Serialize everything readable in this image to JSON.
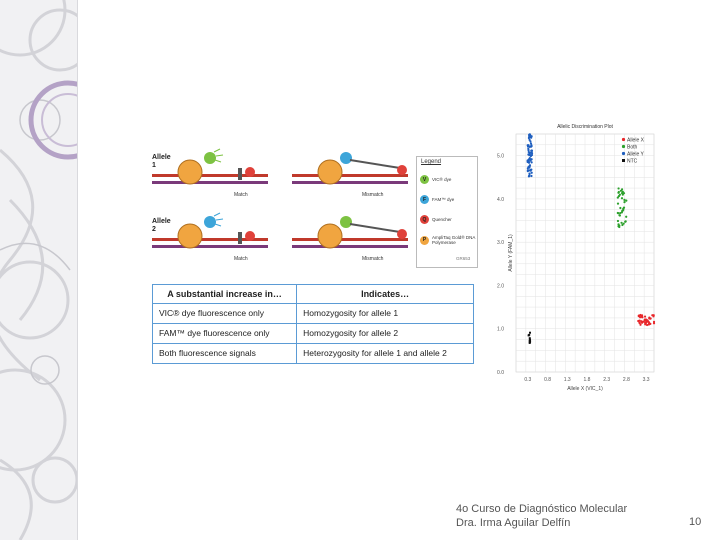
{
  "diagram": {
    "allele1_label": "Allele\n1",
    "allele2_label": "Allele\n2",
    "match": "Match",
    "mismatch": "Mismatch",
    "legend_title": "Legend",
    "legend": [
      {
        "symbol": "V",
        "label": "VIC® dye",
        "color": "#7dc242"
      },
      {
        "symbol": "F",
        "label": "FAM™ dye",
        "color": "#3da5d9"
      },
      {
        "symbol": "Q",
        "label": "Quencher",
        "color": "#e0413a"
      },
      {
        "symbol": "P",
        "label": "AmpliTaq Gold® DNA Polymerase",
        "color": "#f0a540"
      }
    ],
    "fig_code": "GR653"
  },
  "table": {
    "headers": [
      "A substantial increase in…",
      "Indicates…"
    ],
    "rows": [
      [
        "VIC® dye fluorescence only",
        "Homozygosity for allele 1"
      ],
      [
        "FAM™ dye fluorescence only",
        "Homozygosity for allele 2"
      ],
      [
        "Both fluorescence signals",
        "Heterozygosity for allele 1 and allele 2"
      ]
    ]
  },
  "chart_data": {
    "type": "scatter",
    "title": "Allelic Discrimination Plot",
    "xlabel": "Allele X (VIC_1)",
    "ylabel": "Allele Y (FAM_1)",
    "xlim": [
      0,
      3.5
    ],
    "ylim": [
      0,
      5.5
    ],
    "x_ticks": [
      "0.3",
      "0.8",
      "1.3",
      "1.8",
      "2.3",
      "2.8",
      "3.3"
    ],
    "y_ticks": [
      "0.0",
      "1.0",
      "2.0",
      "3.0",
      "4.0",
      "5.0"
    ],
    "series": [
      {
        "name": "Allele X",
        "color": "#e8262a",
        "center": [
          3.3,
          1.2
        ]
      },
      {
        "name": "Both",
        "color": "#2ca02c",
        "center": [
          2.7,
          3.8
        ]
      },
      {
        "name": "Allele Y",
        "color": "#1f5fbf",
        "center": [
          0.35,
          5.0
        ]
      },
      {
        "name": "NTC",
        "color": "#111111",
        "center": [
          0.35,
          0.85
        ]
      }
    ]
  },
  "footer": {
    "line1": "4o Curso de Diagnóstico Molecular",
    "line2": "Dra. Irma Aguilar Delfín",
    "page": "10"
  }
}
